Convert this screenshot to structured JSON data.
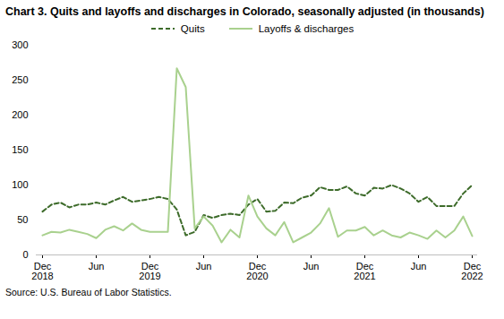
{
  "chart_data": {
    "type": "line",
    "title": "Chart 3. Quits and layoffs and discharges in Colorado, seasonally adjusted (in thousands)",
    "caption": "Source: U.S. Bureau of Labor Statistics.",
    "categories": [
      "Dec\n2018",
      null,
      null,
      null,
      null,
      null,
      "Jun",
      null,
      null,
      null,
      null,
      null,
      "Dec\n2019",
      null,
      null,
      null,
      null,
      null,
      "Jun",
      null,
      null,
      null,
      null,
      null,
      "Dec\n2020",
      null,
      null,
      null,
      null,
      null,
      "Jun",
      null,
      null,
      null,
      null,
      null,
      "Dec\n2021",
      null,
      null,
      null,
      null,
      null,
      "Jun",
      null,
      null,
      null,
      null,
      null,
      "Dec\n2022"
    ],
    "series": [
      {
        "name": "Quits",
        "color": "#3d6b2a",
        "line_style": "dashed",
        "values": [
          62,
          72,
          75,
          68,
          72,
          72,
          75,
          72,
          78,
          83,
          76,
          78,
          80,
          83,
          80,
          65,
          28,
          33,
          57,
          53,
          57,
          59,
          57,
          72,
          80,
          62,
          63,
          75,
          74,
          82,
          85,
          97,
          93,
          93,
          98,
          88,
          85,
          96,
          95,
          100,
          95,
          88,
          76,
          83,
          70,
          70,
          70,
          88,
          100
        ]
      },
      {
        "name": "Layoffs & discharges",
        "color": "#a9d18e",
        "line_style": "solid",
        "values": [
          28,
          33,
          32,
          36,
          33,
          30,
          24,
          36,
          41,
          35,
          45,
          36,
          33,
          33,
          33,
          267,
          240,
          38,
          55,
          42,
          18,
          36,
          25,
          85,
          55,
          38,
          28,
          47,
          18,
          25,
          32,
          45,
          67,
          26,
          35,
          35,
          40,
          28,
          35,
          28,
          25,
          32,
          28,
          23,
          35,
          25,
          35,
          55,
          27
        ]
      }
    ],
    "ylim": [
      0,
      300
    ],
    "yticks": [
      0,
      50,
      100,
      150,
      200,
      250,
      300
    ],
    "grid": false,
    "legend": "top"
  }
}
